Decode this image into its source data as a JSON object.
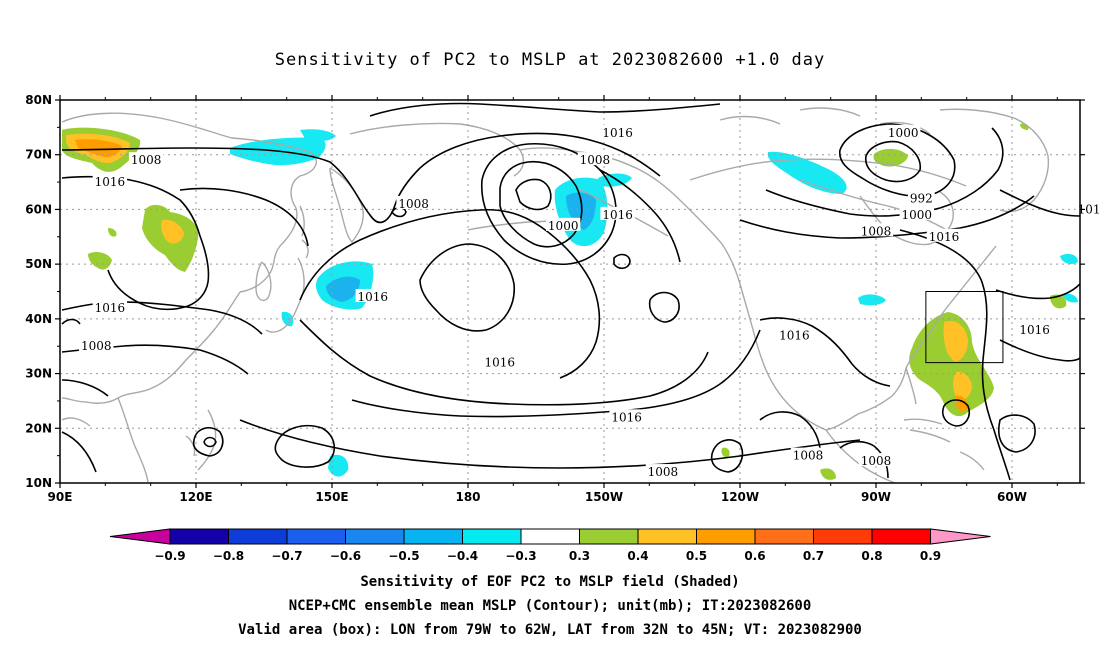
{
  "title": "Sensitivity of PC2 to MSLP at 2023082600 +1.0 day",
  "map": {
    "lat_labels": [
      "80N",
      "70N",
      "60N",
      "50N",
      "40N",
      "30N",
      "20N",
      "10N"
    ],
    "lon_labels": [
      "90E",
      "120E",
      "150E",
      "180",
      "150W",
      "120W",
      "90W",
      "60W"
    ],
    "contour_labels": [
      {
        "text": "1016",
        "lon": -147,
        "lat": 74
      },
      {
        "text": "1008",
        "lon": -152,
        "lat": 69
      },
      {
        "text": "1016",
        "lon": -147,
        "lat": 59
      },
      {
        "text": "1000",
        "lon": -159,
        "lat": 57
      },
      {
        "text": "1008",
        "lon": 168,
        "lat": 61
      },
      {
        "text": "1008",
        "lon": 109,
        "lat": 69
      },
      {
        "text": "1016",
        "lon": 101,
        "lat": 65
      },
      {
        "text": "1016",
        "lon": 101,
        "lat": 42
      },
      {
        "text": "1008",
        "lon": 98,
        "lat": 35
      },
      {
        "text": "1016",
        "lon": 159,
        "lat": 44
      },
      {
        "text": "1016",
        "lon": -173,
        "lat": 32
      },
      {
        "text": "1016",
        "lon": -145,
        "lat": 22
      },
      {
        "text": "1008",
        "lon": -137,
        "lat": 12
      },
      {
        "text": "1000",
        "lon": -84,
        "lat": 74
      },
      {
        "text": "992",
        "lon": -80,
        "lat": 62
      },
      {
        "text": "1000",
        "lon": -81,
        "lat": 59
      },
      {
        "text": "1008",
        "lon": -90,
        "lat": 56
      },
      {
        "text": "1016",
        "lon": -75,
        "lat": 55
      },
      {
        "text": "1016",
        "lon": -108,
        "lat": 37
      },
      {
        "text": "1016",
        "lon": -55,
        "lat": 38
      },
      {
        "text": "1008",
        "lon": -105,
        "lat": 15
      },
      {
        "text": "1008",
        "lon": -90,
        "lat": 14
      },
      {
        "text": "101",
        "lon": -43,
        "lat": 60
      }
    ],
    "valid_box": {
      "lon_min": -79,
      "lon_max": -62,
      "lat_min": 32,
      "lat_max": 45
    },
    "colors": {
      "contour": "#000000",
      "coastline": "#a9a9a9",
      "grid": "#9a9a9a",
      "box": "#000000"
    }
  },
  "colorbar": {
    "labels": [
      "−0.9",
      "−0.8",
      "−0.7",
      "−0.6",
      "−0.5",
      "−0.4",
      "−0.3",
      "0.3",
      "0.4",
      "0.5",
      "0.6",
      "0.7",
      "0.8",
      "0.9"
    ],
    "colors": [
      "#1300a9",
      "#0d3cd8",
      "#1c5fee",
      "#1a86f0",
      "#07b3f0",
      "#06ebf2",
      "#ffffff",
      "#9acd32",
      "#ffc125",
      "#ff9c00",
      "#ff6f19",
      "#ff3c08",
      "#ff0000"
    ],
    "low_extend_color": "#c8009c",
    "high_extend_color": "#ff98c8"
  },
  "shading": {
    "negative_color": "#18e8f2",
    "negative_strong_color": "#1ab3ee",
    "pos_light_color": "#9acd32",
    "pos_mid_color": "#ffc125",
    "pos_strong_color": "#ff9c00"
  },
  "captions": [
    "Sensitivity of EOF PC2 to MSLP field (Shaded)",
    "NCEP+CMC ensemble mean MSLP (Contour); unit(mb); IT:2023082600",
    "Valid area (box): LON from 79W to 62W, LAT from 32N to 45N; VT: 2023082900"
  ]
}
